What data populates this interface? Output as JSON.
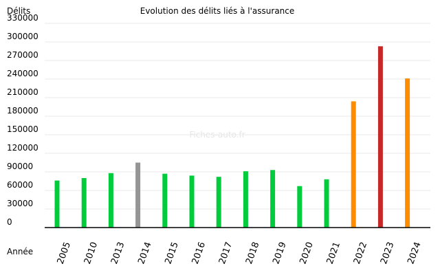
{
  "chart_data": {
    "type": "bar",
    "title": "Evolution des délits liés à l'assurance",
    "ylabel": "Délits",
    "xlabel": "Année",
    "watermark": "Fiches-auto.fr",
    "ylim": [
      0,
      330000
    ],
    "yticks": [
      0,
      30000,
      60000,
      90000,
      120000,
      150000,
      180000,
      210000,
      240000,
      270000,
      300000,
      330000
    ],
    "grid": true,
    "categories": [
      "2005",
      "2010",
      "2013",
      "2014",
      "2015",
      "2016",
      "2017",
      "2018",
      "2019",
      "2020",
      "2021",
      "2022",
      "2023",
      "2024"
    ],
    "values": [
      76000,
      80000,
      88000,
      105000,
      87000,
      84000,
      82000,
      91000,
      93000,
      67000,
      78000,
      204000,
      293000,
      241000
    ],
    "colors": [
      "#00cc3c",
      "#00cc3c",
      "#00cc3c",
      "#959595",
      "#00cc3c",
      "#00cc3c",
      "#00cc3c",
      "#00cc3c",
      "#00cc3c",
      "#00cc3c",
      "#00cc3c",
      "#ff8c00",
      "#c62828",
      "#ff8c00"
    ]
  }
}
